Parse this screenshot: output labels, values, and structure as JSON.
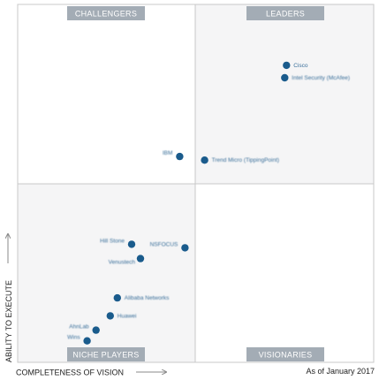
{
  "chart_data": {
    "type": "scatter",
    "quadrants": {
      "top_left": "CHALLENGERS",
      "top_right": "LEADERS",
      "bottom_left": "NICHE PLAYERS",
      "bottom_right": "VISIONARIES"
    },
    "xlabel": "COMPLETENESS OF VISION",
    "ylabel": "ABILITY TO EXECUTE",
    "xlim": [
      0,
      100
    ],
    "ylim": [
      0,
      100
    ],
    "as_of": "As of January 2017",
    "point_color": "#1a5b8c",
    "points": [
      {
        "label": "Cisco",
        "x": 75.5,
        "y": 83.0,
        "blurred": false
      },
      {
        "label": "Intel Security (McAfee)",
        "x": 75.0,
        "y": 79.5,
        "blurred": true
      },
      {
        "label": "IBM",
        "x": 45.5,
        "y": 57.5,
        "blurred": true
      },
      {
        "label": "Trend Micro (TippingPoint)",
        "x": 52.5,
        "y": 56.5,
        "blurred": true
      },
      {
        "label": "NSFOCUS",
        "x": 47.0,
        "y": 32.0,
        "blurred": true
      },
      {
        "label": "Hill Stone",
        "x": 32.0,
        "y": 33.0,
        "blurred": true
      },
      {
        "label": "Venustech",
        "x": 34.5,
        "y": 29.0,
        "blurred": true
      },
      {
        "label": "Alibaba Networks",
        "x": 28.0,
        "y": 18.0,
        "blurred": true
      },
      {
        "label": "Huawei",
        "x": 26.0,
        "y": 13.0,
        "blurred": true
      },
      {
        "label": "AhnLab",
        "x": 22.0,
        "y": 9.0,
        "blurred": true
      },
      {
        "label": "Wins",
        "x": 19.5,
        "y": 6.0,
        "blurred": true
      }
    ]
  }
}
